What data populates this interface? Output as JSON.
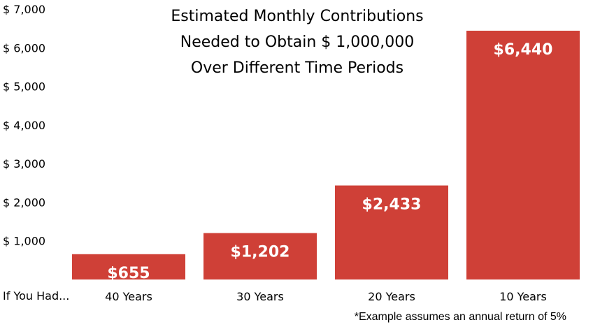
{
  "chart_data": {
    "type": "bar",
    "title_lines": [
      "Estimated Monthly Contributions",
      "Needed to Obtain $ 1,000,000",
      "Over Different Time Periods"
    ],
    "row_label": "If You Had...",
    "categories": [
      "40 Years",
      "30 Years",
      "20 Years",
      "10 Years"
    ],
    "values": [
      655,
      1202,
      2433,
      6440
    ],
    "data_labels": [
      "$655",
      "$1,202",
      "$2,433",
      "$6,440"
    ],
    "y_ticks": [
      {
        "value": 1000,
        "label": "$ 1,000"
      },
      {
        "value": 2000,
        "label": "$ 2,000"
      },
      {
        "value": 3000,
        "label": "$ 3,000"
      },
      {
        "value": 4000,
        "label": "$ 4,000"
      },
      {
        "value": 5000,
        "label": "$ 5,000"
      },
      {
        "value": 6000,
        "label": "$ 6,000"
      },
      {
        "value": 7000,
        "label": "$ 7,000"
      }
    ],
    "ylim": [
      0,
      7000
    ],
    "grid": false,
    "bar_color": "#cf4037",
    "footnote": "*Example assumes an annual return of 5%"
  }
}
